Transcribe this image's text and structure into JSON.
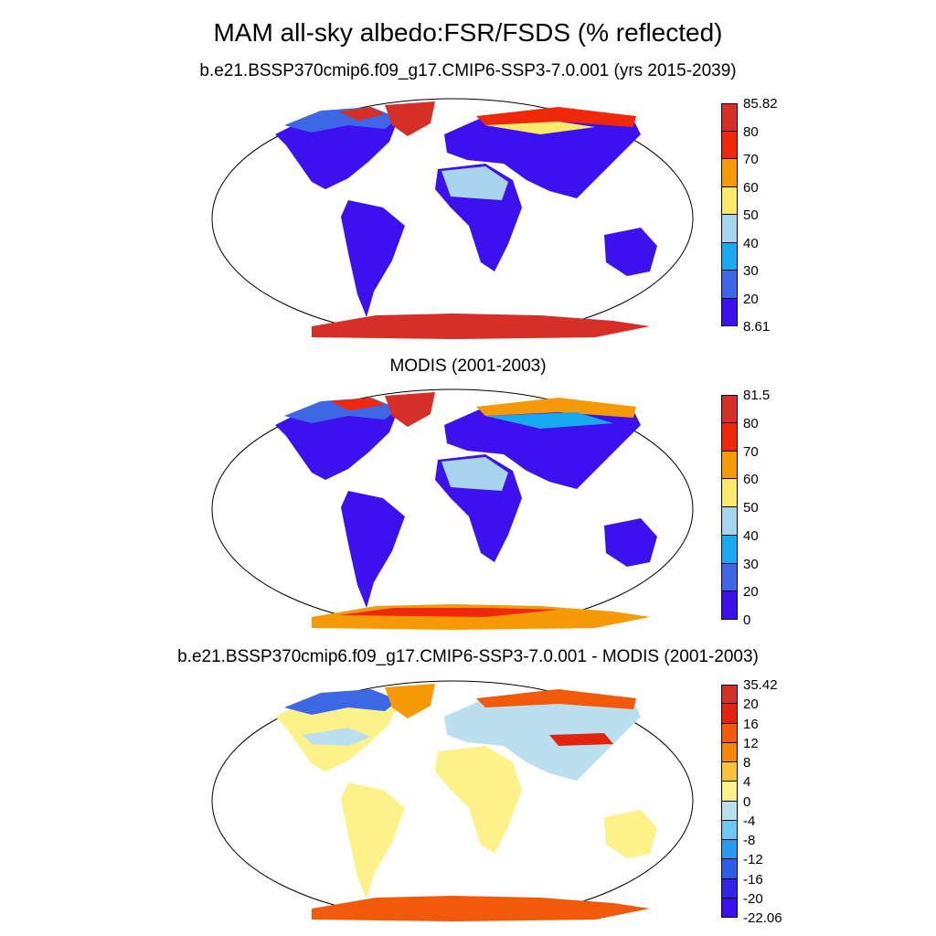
{
  "title": "MAM all-sky albedo:FSR/FSDS (% reflected)",
  "panels": [
    {
      "title": "b.e21.BSSP370cmip6.f09_g17.CMIP6-SSP3-7.0.001 (yrs 2015-2039)",
      "colorbar": {
        "labels": [
          "85.82",
          "80",
          "70",
          "60",
          "50",
          "40",
          "30",
          "20",
          "8.61"
        ],
        "colors": [
          "#d62f27",
          "#f0280a",
          "#f59a05",
          "#fbea6a",
          "#a9d4ee",
          "#19a9f1",
          "#3d67e5",
          "#3d10f0"
        ]
      }
    },
    {
      "title": "MODIS (2001-2003)",
      "colorbar": {
        "labels": [
          "81.5",
          "80",
          "70",
          "60",
          "50",
          "40",
          "30",
          "20",
          "0"
        ],
        "colors": [
          "#d62f27",
          "#f0280a",
          "#f59a05",
          "#fbea6a",
          "#a9d4ee",
          "#19a9f1",
          "#3d67e5",
          "#3d10f0"
        ]
      }
    },
    {
      "title": "b.e21.BSSP370cmip6.f09_g17.CMIP6-SSP3-7.0.001 - MODIS (2001-2003)",
      "colorbar": {
        "labels": [
          "35.42",
          "20",
          "16",
          "12",
          "8",
          "4",
          "0",
          "-4",
          "-8",
          "-12",
          "-16",
          "-20",
          "-22.06"
        ],
        "colors": [
          "#d62f27",
          "#e4230c",
          "#f05a0a",
          "#f5860a",
          "#fbc23a",
          "#fdf18a",
          "#bcdff0",
          "#6ec8f5",
          "#2a9af0",
          "#2e5ee6",
          "#3424e8",
          "#3d10f0"
        ]
      }
    }
  ]
}
